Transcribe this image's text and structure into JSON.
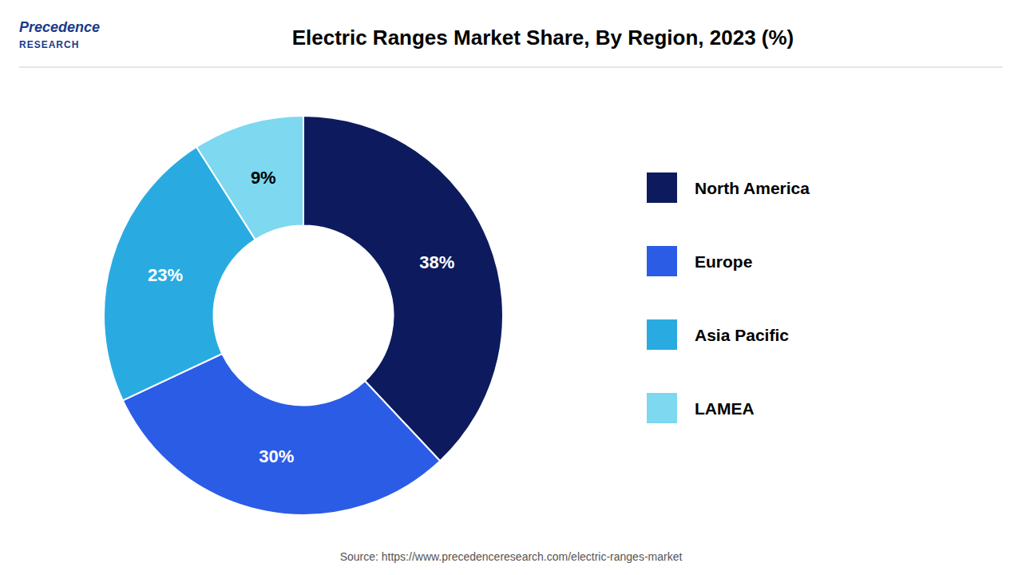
{
  "chart_data": {
    "type": "donut",
    "title": "Electric Ranges Market Share, By Region, 2023 (%)",
    "categories": [
      "North America",
      "Europe",
      "Asia Pacific",
      "LAMEA"
    ],
    "values": [
      38,
      30,
      23,
      9
    ],
    "value_labels": [
      "38%",
      "30%",
      "23%",
      "9%"
    ],
    "colors": [
      "#0d1b5e",
      "#2b5ce6",
      "#29abe2",
      "#7dd8f0"
    ],
    "data_labels": true,
    "legend": "right",
    "annotations": [
      "Precedence",
      "RESEARCH",
      "Source: https://www.precedenceresearch.com/electric-ranges-market"
    ]
  }
}
